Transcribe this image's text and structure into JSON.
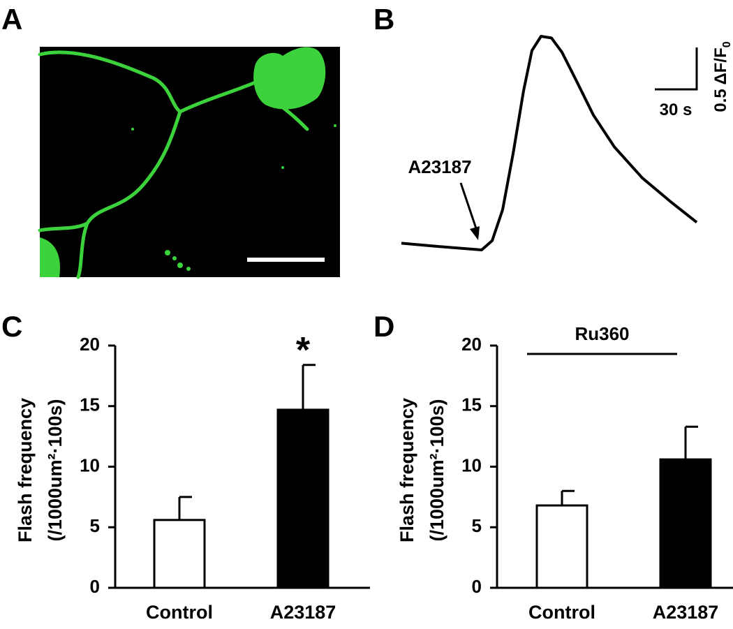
{
  "panel_a_label": "A",
  "chart_data": [
    {
      "type": "line",
      "panel": "B",
      "x": [
        0,
        27.5,
        57.5,
        65,
        72.5,
        80,
        87.5,
        93.5,
        100,
        107.5,
        115,
        125,
        137.5,
        152.5,
        172.5,
        192.5,
        211.5
      ],
      "values": [
        0.08,
        0.04,
        0,
        0.11,
        0.48,
        1.15,
        1.9,
        2.38,
        2.55,
        2.53,
        2.36,
        2.03,
        1.61,
        1.23,
        0.86,
        0.58,
        0.33
      ],
      "color": "#000000",
      "annotation": {
        "text": "A23187",
        "x": 55
      },
      "scale_bar": {
        "x": {
          "value": 30,
          "label": "30 s"
        },
        "y": {
          "value": 0.5,
          "label": "0.5 ΔF/F",
          "label_sub": "0"
        }
      }
    },
    {
      "type": "bar",
      "panel": "C",
      "categories": [
        "Control",
        "A23187"
      ],
      "values": [
        5.6,
        14.7
      ],
      "errors": [
        1.9,
        3.7
      ],
      "colors": [
        "#ffffff",
        "#000000"
      ],
      "ylabel": [
        "Flash frequency",
        "(/1000um²·100s)"
      ],
      "ylim": [
        0,
        20
      ],
      "yticks": [
        0,
        5,
        10,
        15,
        20
      ],
      "significance": {
        "text": "*",
        "category": 1
      }
    },
    {
      "type": "bar",
      "panel": "D",
      "categories": [
        "Control",
        "A23187"
      ],
      "values": [
        6.8,
        10.6
      ],
      "errors": [
        1.2,
        2.7
      ],
      "colors": [
        "#ffffff",
        "#000000"
      ],
      "ylabel": [
        "Flash frequency",
        "(/1000um²·100s)"
      ],
      "ylim": [
        0,
        20
      ],
      "yticks": [
        0,
        5,
        10,
        15,
        20
      ],
      "bracket": {
        "text": "Ru360"
      }
    }
  ]
}
